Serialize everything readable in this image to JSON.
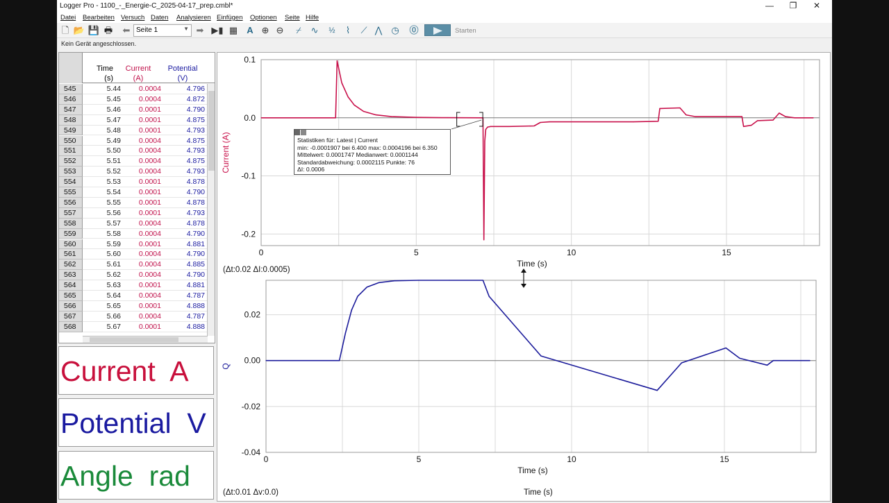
{
  "window": {
    "title": "Logger Pro - 1100_-_Energie-C_2025-04-17_prep.cmbl*"
  },
  "menu": [
    "Datei",
    "Bearbeiten",
    "Versuch",
    "Daten",
    "Analysieren",
    "Einfügen",
    "Optionen",
    "Seite",
    "Hilfe"
  ],
  "toolbar": {
    "page": "Seite 1",
    "start_label": "Starten"
  },
  "status": "Kein Gerät angeschlossen.",
  "table": {
    "headers": [
      {
        "name": "Time",
        "unit": "(s)",
        "color": "#222222"
      },
      {
        "name": "Current",
        "unit": "(A)",
        "color": "#c0104a"
      },
      {
        "name": "Potential",
        "unit": "(V)",
        "color": "#1a1aa0"
      }
    ],
    "rows": [
      [
        "545",
        "5.44",
        "0.0004",
        "4.796"
      ],
      [
        "546",
        "5.45",
        "0.0004",
        "4.872"
      ],
      [
        "547",
        "5.46",
        "0.0001",
        "4.790"
      ],
      [
        "548",
        "5.47",
        "0.0001",
        "4.875"
      ],
      [
        "549",
        "5.48",
        "0.0001",
        "4.793"
      ],
      [
        "550",
        "5.49",
        "0.0004",
        "4.875"
      ],
      [
        "551",
        "5.50",
        "0.0004",
        "4.793"
      ],
      [
        "552",
        "5.51",
        "0.0004",
        "4.875"
      ],
      [
        "553",
        "5.52",
        "0.0004",
        "4.793"
      ],
      [
        "554",
        "5.53",
        "0.0001",
        "4.878"
      ],
      [
        "555",
        "5.54",
        "0.0001",
        "4.790"
      ],
      [
        "556",
        "5.55",
        "0.0001",
        "4.878"
      ],
      [
        "557",
        "5.56",
        "0.0001",
        "4.793"
      ],
      [
        "558",
        "5.57",
        "0.0004",
        "4.878"
      ],
      [
        "559",
        "5.58",
        "0.0004",
        "4.790"
      ],
      [
        "560",
        "5.59",
        "0.0001",
        "4.881"
      ],
      [
        "561",
        "5.60",
        "0.0004",
        "4.790"
      ],
      [
        "562",
        "5.61",
        "0.0004",
        "4.885"
      ],
      [
        "563",
        "5.62",
        "0.0004",
        "4.790"
      ],
      [
        "564",
        "5.63",
        "0.0001",
        "4.881"
      ],
      [
        "565",
        "5.64",
        "0.0004",
        "4.787"
      ],
      [
        "566",
        "5.65",
        "0.0001",
        "4.888"
      ],
      [
        "567",
        "5.66",
        "0.0004",
        "4.787"
      ],
      [
        "568",
        "5.67",
        "0.0001",
        "4.888"
      ]
    ]
  },
  "meters": [
    {
      "text": "Current  A",
      "color": "#c8103c"
    },
    {
      "text": "Potential  V",
      "color": "#1a1aa0"
    },
    {
      "text": "Angle  rad",
      "color": "#1a8a3a"
    }
  ],
  "colors": {
    "current": "#c8104a",
    "charge": "#1a1a9a"
  },
  "chart_data": [
    {
      "type": "line",
      "xlabel": "Time (s)",
      "ylabel": "Current (A)",
      "xlim": [
        0,
        18
      ],
      "ylim": [
        -0.22,
        0.1
      ],
      "xticks": [
        0,
        5,
        10,
        15
      ],
      "yticks": [
        0.1,
        0.0,
        -0.1,
        -0.2
      ],
      "ytick_labels": [
        "0.1",
        "0.0",
        "-0.1",
        "-0.2"
      ],
      "grid": true,
      "series": [
        {
          "color": "#c8104a",
          "x": [
            0,
            2.4,
            2.45,
            2.6,
            2.8,
            3.0,
            3.3,
            3.7,
            4.2,
            5.0,
            6.0,
            7.15,
            7.18,
            7.21,
            7.24,
            7.3,
            7.4,
            8.0,
            8.8,
            9.0,
            9.3,
            12.0,
            12.8,
            12.85,
            13.5,
            13.7,
            14.0,
            15.5,
            15.55,
            15.8,
            16.0,
            16.5,
            16.7,
            16.9,
            17.2,
            17.8
          ],
          "y": [
            0.0,
            0.0,
            0.098,
            0.06,
            0.036,
            0.022,
            0.011,
            0.005,
            0.002,
            0.0006,
            0.0002,
            0.0,
            -0.21,
            -0.04,
            -0.02,
            -0.016,
            -0.015,
            -0.015,
            -0.014,
            -0.008,
            -0.007,
            -0.007,
            -0.006,
            0.016,
            0.017,
            0.005,
            0.002,
            0.002,
            -0.015,
            -0.013,
            -0.005,
            -0.004,
            0.008,
            0.002,
            0.0,
            0.0
          ]
        }
      ],
      "status": "(Δt:0.02 ΔI:0.0005)",
      "stats": {
        "line1": "Statistiken für: Latest | Current",
        "line2": "min: -0.0001907 bei 6.400 max: 0.0004196 bei 6.350",
        "line3": "Mittelwert: 0.0001747 Medianwert: 0.0001144",
        "line4": "Standardabweichung: 0.0002115 Punkte: 76",
        "line5": "ΔI: 0.0006"
      }
    },
    {
      "type": "line",
      "xlabel": "Time (s)",
      "ylabel": "Q",
      "xlim": [
        0,
        18
      ],
      "ylim": [
        -0.04,
        0.035
      ],
      "xticks": [
        0,
        5,
        10,
        15
      ],
      "yticks": [
        0.02,
        0.0,
        -0.02,
        -0.04
      ],
      "ytick_labels": [
        "0.02",
        "0.00",
        "-0.02",
        "-0.04"
      ],
      "grid": true,
      "series": [
        {
          "color": "#1a1a9a",
          "x": [
            0,
            2.4,
            2.6,
            2.8,
            3.0,
            3.3,
            3.7,
            4.2,
            5.0,
            6.0,
            7.1,
            7.3,
            9.0,
            12.8,
            13.6,
            15.05,
            15.5,
            16.4,
            16.6,
            17.8
          ],
          "y": [
            0.0,
            0.0,
            0.012,
            0.022,
            0.028,
            0.032,
            0.034,
            0.0348,
            0.035,
            0.035,
            0.035,
            0.028,
            0.002,
            -0.013,
            -0.001,
            0.0055,
            0.001,
            -0.002,
            0.0,
            0.0
          ]
        }
      ],
      "status": "(Δt:0.01 Δv:0.0)"
    }
  ]
}
